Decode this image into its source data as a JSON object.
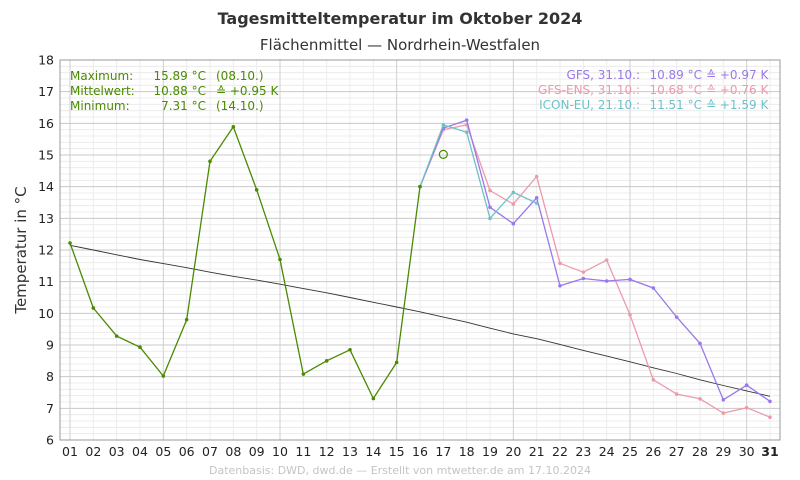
{
  "title": "Tagesmitteltemperatur im Oktober 2024",
  "subtitle": "Flächenmittel — Nordrhein-Westfalen",
  "footer": "Datenbasis: DWD, dwd.de — Erstellt von mtwetter.de am 17.10.2024",
  "stats": [
    {
      "label": "Maximum:",
      "value": "15.89 °C",
      "extra": "(08.10.)"
    },
    {
      "label": "Mittelwert:",
      "value": "10.88 °C",
      "extra": "≙ +0.95 K"
    },
    {
      "label": "Minimum:",
      "value": "7.31 °C",
      "extra": "(14.10.)"
    }
  ],
  "forecast_legend": [
    {
      "label": "GFS, 31.10.:",
      "value": "10.89 °C",
      "extra": "≙ +0.97 K",
      "color": "#9a78e8"
    },
    {
      "label": "GFS-ENS, 31.10.:",
      "value": "10.68 °C",
      "extra": "≙ +0.76 K",
      "color": "#ec9aab"
    },
    {
      "label": "ICON-EU, 21.10.:",
      "value": "11.51 °C",
      "extra": "≙ +1.59 K",
      "color": "#6cc2c8"
    }
  ],
  "colors": {
    "observed": "#4a8a00",
    "climate": "#333333",
    "gfs": "#9a78e8",
    "gfs_ens": "#ec9aab",
    "icon_eu": "#6cc2c8"
  },
  "chart_data": {
    "type": "line",
    "title": "Tagesmitteltemperatur im Oktober 2024",
    "subtitle": "Flächenmittel — Nordrhein-Westfalen",
    "xlabel": "",
    "ylabel": "Temperatur in °C",
    "ylim": [
      6,
      18
    ],
    "xlim": [
      1,
      31
    ],
    "grid": true,
    "categories": [
      "01",
      "02",
      "03",
      "04",
      "05",
      "06",
      "07",
      "08",
      "09",
      "10",
      "11",
      "12",
      "13",
      "14",
      "15",
      "16",
      "17",
      "18",
      "19",
      "20",
      "21",
      "22",
      "23",
      "24",
      "25",
      "26",
      "27",
      "28",
      "29",
      "30",
      "31"
    ],
    "yticks": [
      6,
      7,
      8,
      9,
      10,
      11,
      12,
      13,
      14,
      15,
      16,
      17,
      18
    ],
    "series": [
      {
        "name": "",
        "key": "observed",
        "x": [
          1,
          2,
          3,
          4,
          5,
          6,
          7,
          8,
          9,
          10,
          11,
          12,
          13,
          14,
          15,
          16
        ],
        "values": [
          12.22,
          10.17,
          9.28,
          8.93,
          8.02,
          9.8,
          14.8,
          15.89,
          13.9,
          11.7,
          8.08,
          8.5,
          8.85,
          7.31,
          8.45,
          14.0
        ]
      },
      {
        "name": "",
        "key": "climate",
        "x": [
          1,
          2,
          3,
          4,
          5,
          6,
          7,
          8,
          9,
          10,
          11,
          12,
          13,
          14,
          15,
          16,
          17,
          18,
          19,
          20,
          21,
          22,
          23,
          24,
          25,
          26,
          27,
          28,
          29,
          30,
          31
        ],
        "values": [
          12.15,
          12.0,
          11.85,
          11.7,
          11.57,
          11.44,
          11.3,
          11.17,
          11.05,
          10.92,
          10.78,
          10.65,
          10.5,
          10.35,
          10.2,
          10.05,
          9.88,
          9.72,
          9.53,
          9.35,
          9.2,
          9.02,
          8.83,
          8.65,
          8.47,
          8.28,
          8.1,
          7.9,
          7.72,
          7.55,
          7.38
        ]
      },
      {
        "name": "GFS",
        "key": "gfs",
        "x": [
          16,
          17,
          18,
          19,
          20,
          21,
          22,
          23,
          24,
          25,
          26,
          27,
          28,
          29,
          30,
          31
        ],
        "values": [
          14.0,
          15.85,
          16.1,
          13.35,
          12.83,
          13.65,
          10.87,
          11.1,
          11.02,
          11.07,
          10.8,
          9.88,
          9.05,
          7.27,
          7.73,
          7.22
        ]
      },
      {
        "name": "GFS-ENS",
        "key": "gfs_ens",
        "x": [
          16,
          17,
          18,
          19,
          20,
          21,
          22,
          23,
          24,
          25,
          26,
          27,
          28,
          29,
          30,
          31
        ],
        "values": [
          14.0,
          15.8,
          15.95,
          13.88,
          13.45,
          14.32,
          11.58,
          11.3,
          11.68,
          9.95,
          7.9,
          7.45,
          7.3,
          6.85,
          7.02,
          6.72
        ]
      },
      {
        "name": "ICON-EU",
        "key": "icon_eu",
        "x": [
          16,
          17,
          18,
          19,
          20,
          21
        ],
        "values": [
          14.0,
          15.95,
          15.72,
          13.0,
          13.82,
          13.48
        ]
      }
    ],
    "markers": [
      {
        "x": 17,
        "y": 15.02,
        "shape": "open-circle",
        "key": "observed"
      }
    ]
  }
}
